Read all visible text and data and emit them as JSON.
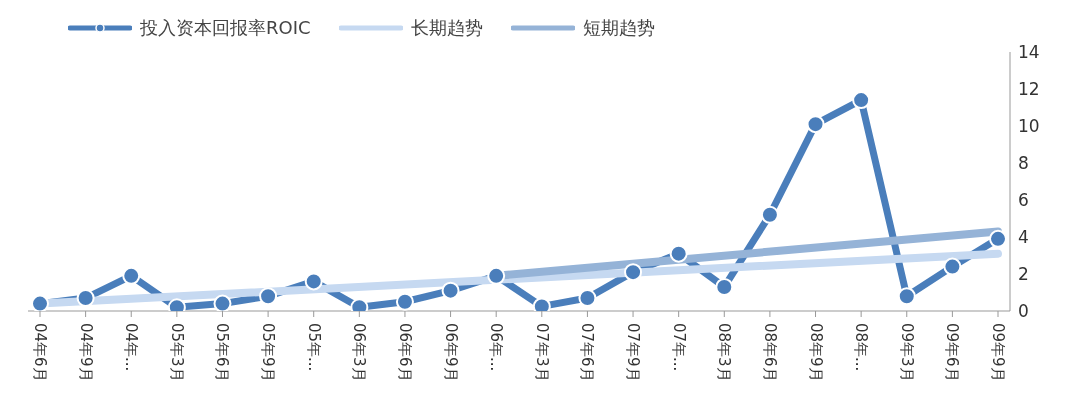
{
  "chart_data": {
    "type": "line",
    "categories": [
      "04年6月",
      "04年9月",
      "04年...",
      "05年3月",
      "05年6月",
      "05年9月",
      "05年...",
      "06年3月",
      "06年6月",
      "06年9月",
      "06年...",
      "07年3月",
      "07年6月",
      "07年9月",
      "07年...",
      "08年3月",
      "08年6月",
      "08年9月",
      "08年...",
      "09年3月",
      "09年6月",
      "09年9月"
    ],
    "series": [
      {
        "name": "投入资本回报率ROIC",
        "color": "#4a7ebb",
        "marker": "circle",
        "values": [
          0.4,
          0.7,
          1.9,
          0.2,
          0.4,
          0.8,
          1.6,
          0.2,
          0.5,
          1.1,
          1.9,
          0.25,
          0.7,
          2.1,
          3.1,
          1.3,
          5.2,
          10.1,
          11.4,
          0.8,
          2.4,
          3.9
        ]
      },
      {
        "name": "长期趋势",
        "color": "#c6d9f1",
        "marker": "none",
        "values": [
          0.4,
          null,
          null,
          null,
          null,
          null,
          null,
          null,
          null,
          null,
          null,
          null,
          null,
          null,
          null,
          null,
          null,
          null,
          null,
          null,
          null,
          3.1
        ]
      },
      {
        "name": "短期趋势",
        "color": "#95b3d7",
        "marker": "none",
        "values": [
          null,
          null,
          null,
          null,
          null,
          null,
          null,
          null,
          null,
          null,
          1.9,
          null,
          null,
          null,
          null,
          null,
          null,
          null,
          null,
          null,
          null,
          4.3
        ]
      }
    ],
    "ylim": [
      0,
      14
    ],
    "yticks": [
      0,
      2,
      4,
      6,
      8,
      10,
      12,
      14
    ],
    "grid": false,
    "legend": "top left"
  }
}
